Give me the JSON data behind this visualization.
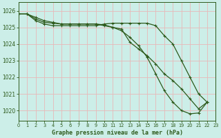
{
  "bg_color": "#cceee8",
  "grid_color": "#d9d9d9",
  "line_color": "#2d5a1b",
  "xlabel": "Graphe pression niveau de la mer (hPa)",
  "xlim": [
    0,
    23
  ],
  "ylim": [
    1019.4,
    1026.5
  ],
  "yticks": [
    1020,
    1021,
    1022,
    1023,
    1024,
    1025,
    1026
  ],
  "xticks": [
    0,
    1,
    2,
    3,
    4,
    5,
    6,
    7,
    8,
    9,
    10,
    11,
    12,
    13,
    14,
    15,
    16,
    17,
    18,
    19,
    20,
    21,
    22,
    23
  ],
  "line1_x": [
    0,
    1,
    2,
    3,
    4,
    5,
    6,
    7,
    8,
    9,
    10,
    11,
    12,
    13,
    14,
    15,
    16,
    17,
    18,
    19,
    20,
    21,
    22
  ],
  "line1_y": [
    1025.8,
    1025.8,
    1025.5,
    1025.3,
    1025.25,
    1025.2,
    1025.2,
    1025.2,
    1025.2,
    1025.2,
    1025.15,
    1025.0,
    1024.9,
    1024.1,
    1023.7,
    1023.3,
    1022.8,
    1022.2,
    1021.8,
    1021.3,
    1020.7,
    1020.1,
    1020.5
  ],
  "line2_x": [
    0,
    1,
    2,
    3,
    4,
    5,
    6,
    7,
    8,
    9,
    10,
    11,
    12,
    13,
    14,
    15,
    16,
    17,
    18,
    19,
    20,
    21,
    22
  ],
  "line2_y": [
    1025.8,
    1025.8,
    1025.4,
    1025.2,
    1025.1,
    1025.1,
    1025.1,
    1025.1,
    1025.1,
    1025.1,
    1025.2,
    1025.25,
    1025.25,
    1025.25,
    1025.25,
    1025.25,
    1025.1,
    1024.5,
    1024.0,
    1023.0,
    1022.0,
    1021.0,
    1020.5
  ],
  "line3_x": [
    0,
    1,
    2,
    3,
    4,
    5,
    6,
    7,
    8,
    9,
    10,
    11,
    12,
    13,
    14,
    15,
    16,
    17,
    18,
    19,
    20,
    21,
    22
  ],
  "line3_y": [
    1025.8,
    1025.8,
    1025.6,
    1025.4,
    1025.3,
    1025.2,
    1025.2,
    1025.2,
    1025.2,
    1025.2,
    1025.1,
    1025.0,
    1024.8,
    1024.4,
    1023.9,
    1023.2,
    1022.2,
    1021.2,
    1020.5,
    1020.0,
    1019.8,
    1019.85,
    1020.5
  ]
}
